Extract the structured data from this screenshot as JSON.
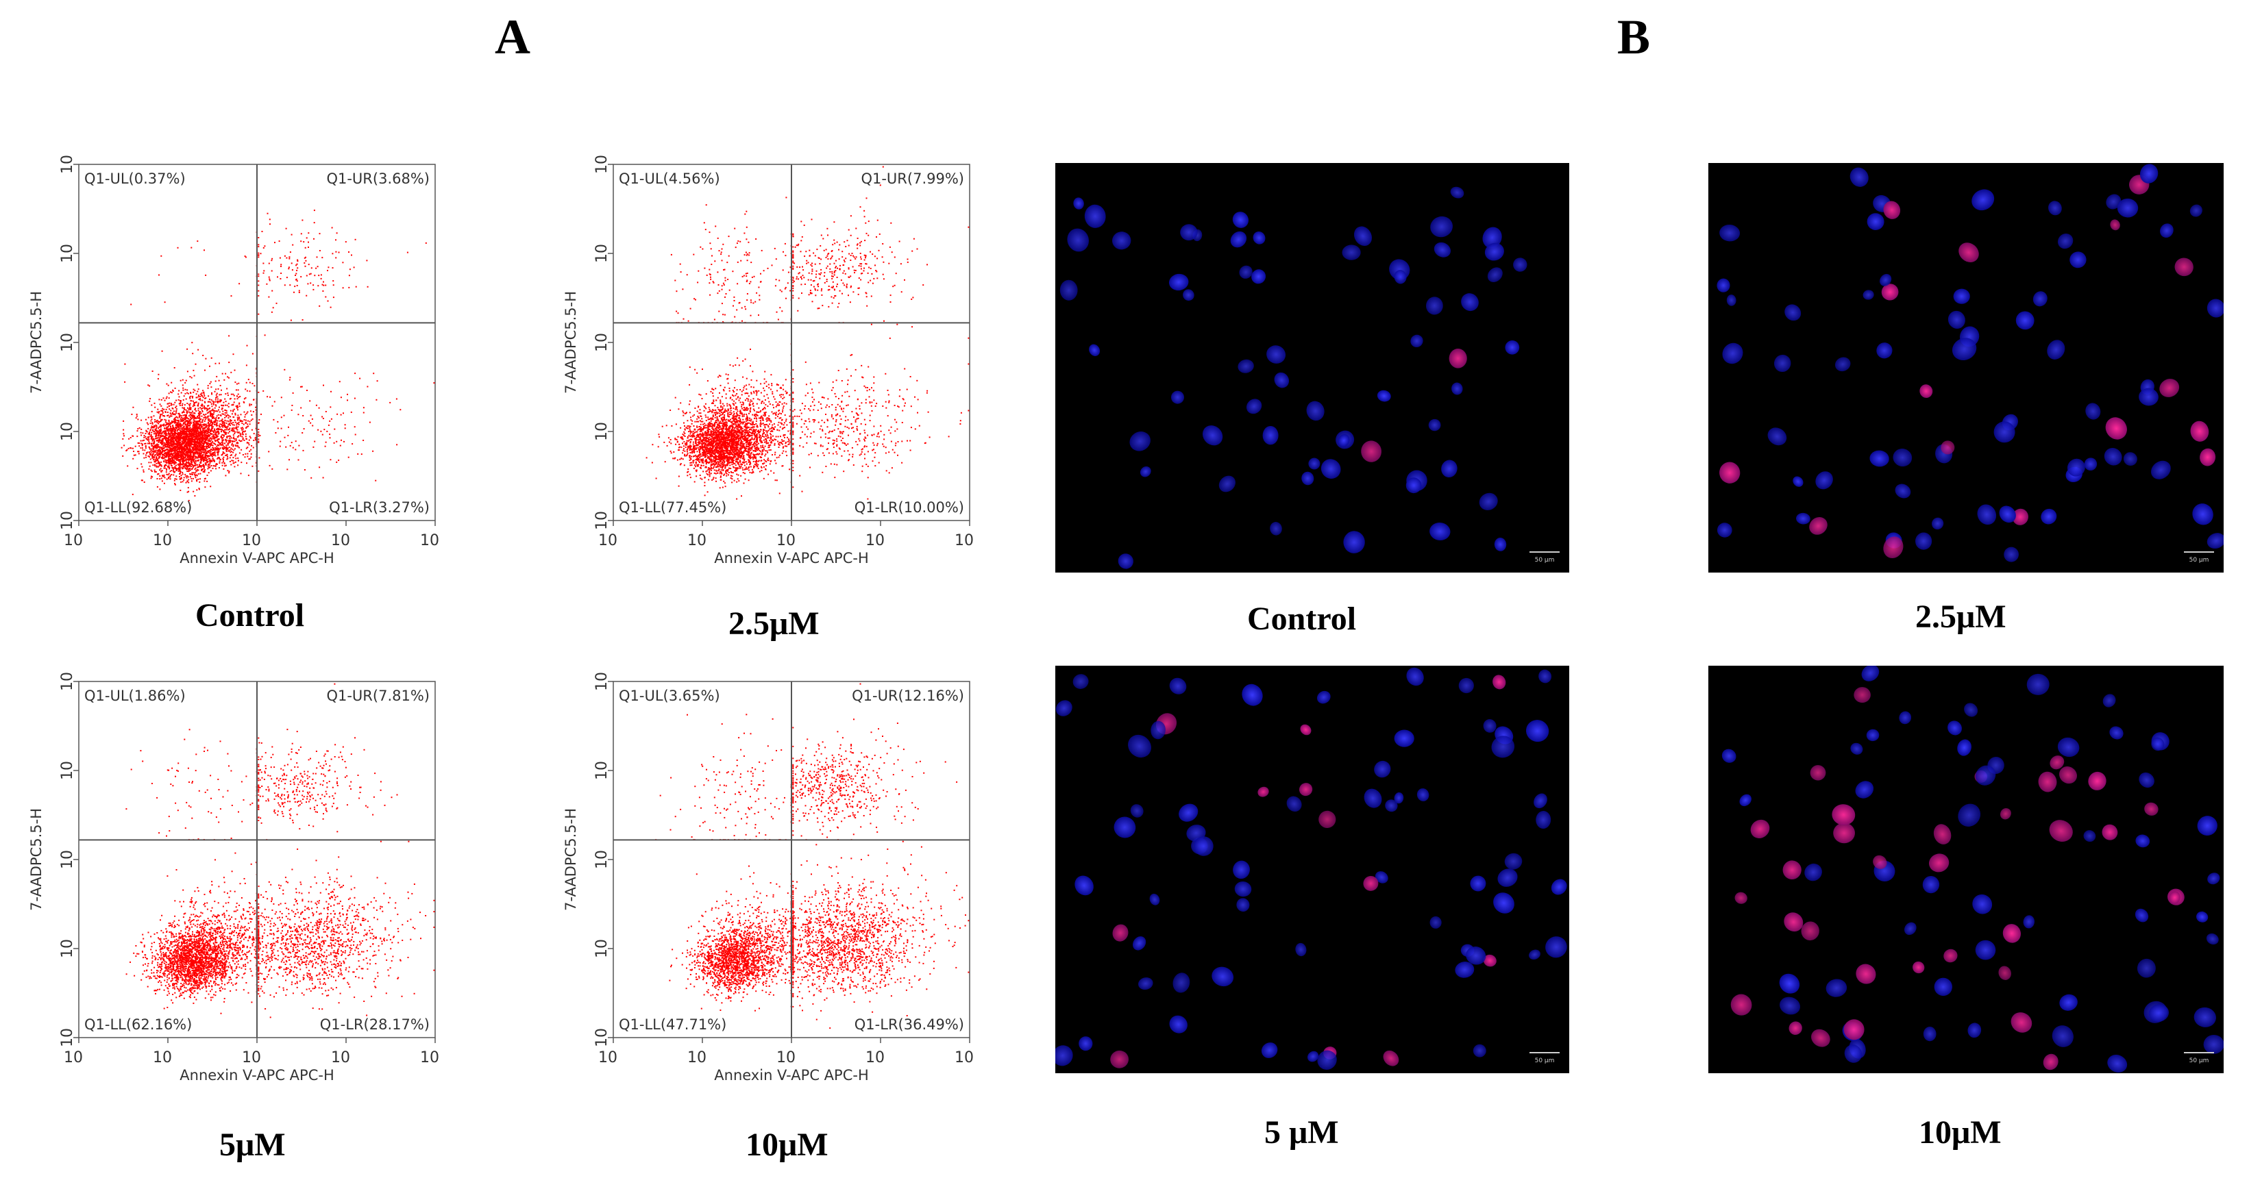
{
  "panel_labels": {
    "A": "A",
    "B": "B"
  },
  "flow_captions": [
    "Control",
    "2.5μM",
    "5μM",
    "10μM"
  ],
  "micro_captions": [
    "Control",
    "2.5μM",
    "5 μM",
    "10μM"
  ],
  "scale_bar_label": "50 μm",
  "colors": {
    "dots": "#ff0000",
    "blue_nucleus": "#1414ff",
    "pink_nucleus": "#e0148c",
    "background_micro": "#000000"
  },
  "chart_data": [
    {
      "type": "scatter",
      "xlabel": "Annexin V-APC APC-H",
      "ylabel": "7-AADPC5.5-H",
      "scale": "log",
      "xlim_exp": [
        2,
        6
      ],
      "ylim_exp": [
        2,
        6
      ],
      "quadrant_gate": {
        "x_exp": 4.0,
        "y_exp": 4.22
      },
      "quadrants": {
        "UL": "Q1-UL(0.37%)",
        "UR": "Q1-UR(3.68%)",
        "LL": "Q1-LL(92.68%)",
        "LR": "Q1-LR(3.27%)"
      },
      "percentages": {
        "UL": 0.37,
        "UR": 3.68,
        "LL": 92.68,
        "LR": 3.27
      }
    },
    {
      "type": "scatter",
      "xlabel": "Annexin V-APC APC-H",
      "ylabel": "7-AADPC5.5-H",
      "scale": "log",
      "xlim_exp": [
        2,
        6
      ],
      "ylim_exp": [
        2,
        6
      ],
      "quadrant_gate": {
        "x_exp": 4.0,
        "y_exp": 4.22
      },
      "quadrants": {
        "UL": "Q1-UL(4.56%)",
        "UR": "Q1-UR(7.99%)",
        "LL": "Q1-LL(77.45%)",
        "LR": "Q1-LR(10.00%)"
      },
      "percentages": {
        "UL": 4.56,
        "UR": 7.99,
        "LL": 77.45,
        "LR": 10.0
      }
    },
    {
      "type": "scatter",
      "xlabel": "Annexin V-APC APC-H",
      "ylabel": "7-AADPC5.5-H",
      "scale": "log",
      "xlim_exp": [
        2,
        6
      ],
      "ylim_exp": [
        2,
        6
      ],
      "quadrant_gate": {
        "x_exp": 4.0,
        "y_exp": 4.22
      },
      "quadrants": {
        "UL": "Q1-UL(1.86%)",
        "UR": "Q1-UR(7.81%)",
        "LL": "Q1-LL(62.16%)",
        "LR": "Q1-LR(28.17%)"
      },
      "percentages": {
        "UL": 1.86,
        "UR": 7.81,
        "LL": 62.16,
        "LR": 28.17
      }
    },
    {
      "type": "scatter",
      "xlabel": "Annexin V-APC APC-H",
      "ylabel": "7-AADPC5.5-H",
      "scale": "log",
      "xlim_exp": [
        2,
        6
      ],
      "ylim_exp": [
        2,
        6
      ],
      "quadrant_gate": {
        "x_exp": 4.0,
        "y_exp": 4.22
      },
      "quadrants": {
        "UL": "Q1-UL(3.65%)",
        "UR": "Q1-UR(12.16%)",
        "LL": "Q1-LL(47.71%)",
        "LR": "Q1-LR(36.49%)"
      },
      "percentages": {
        "UL": 3.65,
        "UR": 12.16,
        "LL": 47.71,
        "LR": 36.49
      }
    }
  ],
  "micrographs": [
    {
      "nuclei_count": 60,
      "pink_fraction": 0.03
    },
    {
      "nuclei_count": 75,
      "pink_fraction": 0.22
    },
    {
      "nuclei_count": 70,
      "pink_fraction": 0.18
    },
    {
      "nuclei_count": 85,
      "pink_fraction": 0.32
    }
  ]
}
